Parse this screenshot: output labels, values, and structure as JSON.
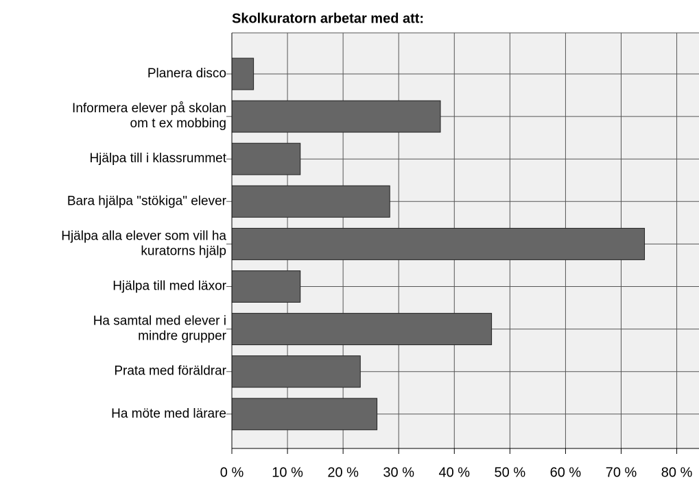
{
  "chart_data": {
    "type": "barh",
    "title": "Skolkuratorn arbetar med att:",
    "categories": [
      "Planera disco",
      "Informera elever på skolan\nom t ex mobbing",
      "Hjälpa till i klassrummet",
      "Bara hjälpa \"stökiga\" elever",
      "Hjälpa alla elever som vill ha\nkuratorns hjälp",
      "Hjälpa till med läxor",
      "Ha samtal med elever i\nmindre grupper",
      "Prata med föräldrar",
      "Ha möte med lärare"
    ],
    "values": [
      3.9,
      37.5,
      12.3,
      28.4,
      74.2,
      12.3,
      46.7,
      23.1,
      26.1
    ],
    "color": "#666666",
    "xlim": [
      0,
      84
    ],
    "xticks": [
      {
        "value": 0,
        "label": "0 %"
      },
      {
        "value": 10,
        "label": "10 %"
      },
      {
        "value": 20,
        "label": "20 %"
      },
      {
        "value": 30,
        "label": "30 %"
      },
      {
        "value": 40,
        "label": "40 %"
      },
      {
        "value": 50,
        "label": "50 %"
      },
      {
        "value": 60,
        "label": "60 %"
      },
      {
        "value": 70,
        "label": "70 %"
      },
      {
        "value": 80,
        "label": "80 %"
      }
    ],
    "grid": true
  }
}
